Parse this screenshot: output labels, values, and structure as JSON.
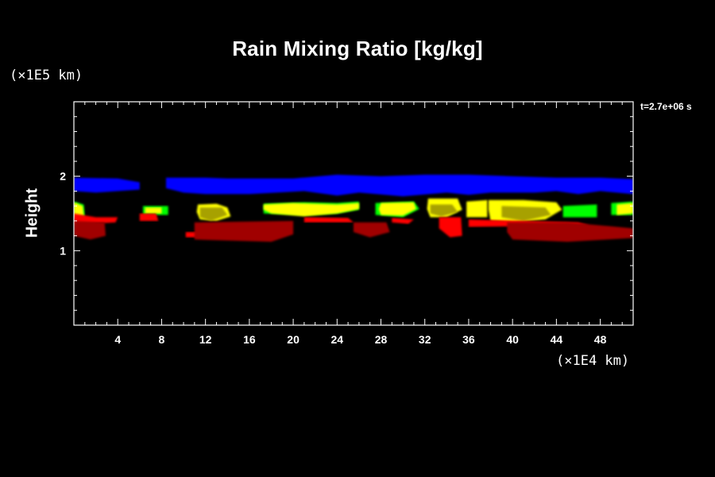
{
  "chart_data": {
    "type": "heatmap",
    "title": "Rain Mixing Ratio [kg/kg]",
    "ylabel": "Height",
    "xlabel": "",
    "x_unit": "(×1E4 km)",
    "y_unit": "(×1E5 km)",
    "time_label": "t=2.7e+06 s",
    "xlim": [
      0,
      51
    ],
    "ylim": [
      0,
      3
    ],
    "x_ticks": [
      4,
      8,
      12,
      16,
      20,
      24,
      28,
      32,
      36,
      40,
      44,
      48
    ],
    "y_ticks": [
      1,
      2
    ],
    "grid": false,
    "colors": {
      "blue": "#0000ff",
      "green": "#00ff00",
      "yellow": "#ffff00",
      "olive": "#a7a100",
      "red": "#ff0000",
      "dark_red": "#a00000"
    },
    "regions": [
      {
        "color": "blue",
        "pts": [
          [
            0,
            1.98
          ],
          [
            4,
            1.97
          ],
          [
            6,
            1.92
          ],
          [
            6,
            1.82
          ],
          [
            2,
            1.78
          ],
          [
            0,
            1.8
          ]
        ]
      },
      {
        "color": "blue",
        "pts": [
          [
            8.4,
            1.98
          ],
          [
            12,
            1.98
          ],
          [
            14,
            1.97
          ],
          [
            20,
            1.97
          ],
          [
            24,
            2.02
          ],
          [
            28,
            2.0
          ],
          [
            32,
            2.02
          ],
          [
            36,
            2.02
          ],
          [
            40,
            2.0
          ],
          [
            44,
            1.98
          ],
          [
            48,
            1.98
          ],
          [
            51,
            1.96
          ],
          [
            51,
            1.76
          ],
          [
            48,
            1.8
          ],
          [
            46,
            1.76
          ],
          [
            44,
            1.8
          ],
          [
            42,
            1.78
          ],
          [
            38,
            1.78
          ],
          [
            36,
            1.75
          ],
          [
            34,
            1.78
          ],
          [
            30,
            1.73
          ],
          [
            26,
            1.78
          ],
          [
            24,
            1.74
          ],
          [
            21,
            1.8
          ],
          [
            16,
            1.76
          ],
          [
            12,
            1.76
          ],
          [
            10,
            1.78
          ],
          [
            8.4,
            1.84
          ]
        ]
      },
      {
        "color": "green",
        "pts": [
          [
            0,
            1.66
          ],
          [
            0.9,
            1.62
          ],
          [
            1.0,
            1.45
          ],
          [
            0,
            1.45
          ]
        ]
      },
      {
        "color": "green",
        "pts": [
          [
            6.3,
            1.6
          ],
          [
            8.6,
            1.6
          ],
          [
            8.6,
            1.48
          ],
          [
            6.3,
            1.48
          ]
        ]
      },
      {
        "color": "green",
        "pts": [
          [
            17.3,
            1.63
          ],
          [
            21,
            1.65
          ],
          [
            24,
            1.64
          ],
          [
            26,
            1.66
          ],
          [
            26,
            1.55
          ],
          [
            24,
            1.5
          ],
          [
            21,
            1.48
          ],
          [
            17.3,
            1.5
          ]
        ]
      },
      {
        "color": "green",
        "pts": [
          [
            27.5,
            1.64
          ],
          [
            31,
            1.66
          ],
          [
            31.5,
            1.56
          ],
          [
            30,
            1.45
          ],
          [
            27.5,
            1.48
          ]
        ]
      },
      {
        "color": "green",
        "pts": [
          [
            44.6,
            1.6
          ],
          [
            47.7,
            1.62
          ],
          [
            47.7,
            1.45
          ],
          [
            44.6,
            1.45
          ]
        ]
      },
      {
        "color": "green",
        "pts": [
          [
            49,
            1.64
          ],
          [
            51,
            1.66
          ],
          [
            51,
            1.48
          ],
          [
            49,
            1.48
          ]
        ]
      },
      {
        "color": "yellow",
        "pts": [
          [
            0,
            1.65
          ],
          [
            0.8,
            1.6
          ],
          [
            0.9,
            1.47
          ],
          [
            0,
            1.44
          ]
        ]
      },
      {
        "color": "yellow",
        "pts": [
          [
            6.5,
            1.58
          ],
          [
            8,
            1.58
          ],
          [
            8,
            1.5
          ],
          [
            6.5,
            1.5
          ]
        ]
      },
      {
        "color": "yellow",
        "pts": [
          [
            11.3,
            1.62
          ],
          [
            13,
            1.63
          ],
          [
            14,
            1.58
          ],
          [
            14.3,
            1.46
          ],
          [
            13,
            1.4
          ],
          [
            11.5,
            1.42
          ],
          [
            11.2,
            1.52
          ]
        ]
      },
      {
        "color": "yellow",
        "pts": [
          [
            17.3,
            1.62
          ],
          [
            20,
            1.64
          ],
          [
            24,
            1.62
          ],
          [
            26,
            1.64
          ],
          [
            26,
            1.56
          ],
          [
            24,
            1.5
          ],
          [
            21,
            1.46
          ],
          [
            18,
            1.5
          ],
          [
            17.3,
            1.55
          ]
        ]
      },
      {
        "color": "yellow",
        "pts": [
          [
            28,
            1.64
          ],
          [
            31,
            1.65
          ],
          [
            31.2,
            1.56
          ],
          [
            30,
            1.47
          ],
          [
            28,
            1.48
          ],
          [
            27.8,
            1.56
          ]
        ]
      },
      {
        "color": "yellow",
        "pts": [
          [
            32.3,
            1.7
          ],
          [
            35,
            1.7
          ],
          [
            35.4,
            1.55
          ],
          [
            34,
            1.45
          ],
          [
            32.5,
            1.45
          ],
          [
            32.2,
            1.56
          ]
        ]
      },
      {
        "color": "yellow",
        "pts": [
          [
            35.8,
            1.66
          ],
          [
            37.7,
            1.68
          ],
          [
            37.7,
            1.45
          ],
          [
            35.8,
            1.45
          ]
        ]
      },
      {
        "color": "yellow",
        "pts": [
          [
            37.8,
            1.68
          ],
          [
            41,
            1.68
          ],
          [
            44,
            1.65
          ],
          [
            44.5,
            1.55
          ],
          [
            43,
            1.42
          ],
          [
            40,
            1.38
          ],
          [
            38,
            1.4
          ],
          [
            37.8,
            1.55
          ]
        ]
      },
      {
        "color": "yellow",
        "pts": [
          [
            49.5,
            1.62
          ],
          [
            51,
            1.64
          ],
          [
            51,
            1.5
          ],
          [
            49.5,
            1.48
          ]
        ]
      },
      {
        "color": "olive",
        "pts": [
          [
            11.5,
            1.58
          ],
          [
            13.5,
            1.58
          ],
          [
            14,
            1.48
          ],
          [
            12.5,
            1.4
          ],
          [
            11.5,
            1.45
          ]
        ]
      },
      {
        "color": "olive",
        "pts": [
          [
            32.5,
            1.62
          ],
          [
            34.5,
            1.62
          ],
          [
            35,
            1.52
          ],
          [
            33.5,
            1.46
          ],
          [
            32.5,
            1.5
          ]
        ]
      },
      {
        "color": "olive",
        "pts": [
          [
            39,
            1.6
          ],
          [
            43,
            1.58
          ],
          [
            43.5,
            1.48
          ],
          [
            41,
            1.4
          ],
          [
            39,
            1.45
          ]
        ]
      },
      {
        "color": "red",
        "pts": [
          [
            0,
            1.5
          ],
          [
            2,
            1.45
          ],
          [
            4,
            1.45
          ],
          [
            3.8,
            1.38
          ],
          [
            0,
            1.35
          ]
        ]
      },
      {
        "color": "red",
        "pts": [
          [
            6,
            1.5
          ],
          [
            7.5,
            1.5
          ],
          [
            7.7,
            1.4
          ],
          [
            6,
            1.4
          ]
        ]
      },
      {
        "color": "red",
        "pts": [
          [
            21,
            1.45
          ],
          [
            25,
            1.44
          ],
          [
            25.5,
            1.38
          ],
          [
            21,
            1.38
          ]
        ]
      },
      {
        "color": "red",
        "pts": [
          [
            29,
            1.44
          ],
          [
            31,
            1.42
          ],
          [
            30.5,
            1.36
          ],
          [
            29,
            1.38
          ]
        ]
      },
      {
        "color": "red",
        "pts": [
          [
            33.3,
            1.45
          ],
          [
            35.3,
            1.45
          ],
          [
            35.4,
            1.2
          ],
          [
            34.3,
            1.18
          ],
          [
            33.3,
            1.3
          ]
        ]
      },
      {
        "color": "red",
        "pts": [
          [
            36,
            1.42
          ],
          [
            41,
            1.4
          ],
          [
            46,
            1.38
          ],
          [
            47,
            1.34
          ],
          [
            36,
            1.32
          ]
        ]
      },
      {
        "color": "red",
        "pts": [
          [
            10.2,
            1.25
          ],
          [
            11.5,
            1.25
          ],
          [
            11.5,
            1.18
          ],
          [
            10.2,
            1.18
          ]
        ]
      },
      {
        "color": "dark_red",
        "pts": [
          [
            0,
            1.4
          ],
          [
            2.8,
            1.38
          ],
          [
            2.9,
            1.2
          ],
          [
            1.5,
            1.15
          ],
          [
            0,
            1.2
          ]
        ]
      },
      {
        "color": "dark_red",
        "pts": [
          [
            11,
            1.38
          ],
          [
            20,
            1.4
          ],
          [
            20,
            1.22
          ],
          [
            18,
            1.12
          ],
          [
            11,
            1.15
          ]
        ]
      },
      {
        "color": "dark_red",
        "pts": [
          [
            25.5,
            1.38
          ],
          [
            28.5,
            1.38
          ],
          [
            28.8,
            1.25
          ],
          [
            27,
            1.18
          ],
          [
            25.5,
            1.25
          ]
        ]
      },
      {
        "color": "dark_red",
        "pts": [
          [
            39.5,
            1.38
          ],
          [
            45,
            1.38
          ],
          [
            51,
            1.3
          ],
          [
            51,
            1.17
          ],
          [
            45,
            1.12
          ],
          [
            40,
            1.15
          ],
          [
            39.5,
            1.25
          ]
        ]
      }
    ]
  }
}
